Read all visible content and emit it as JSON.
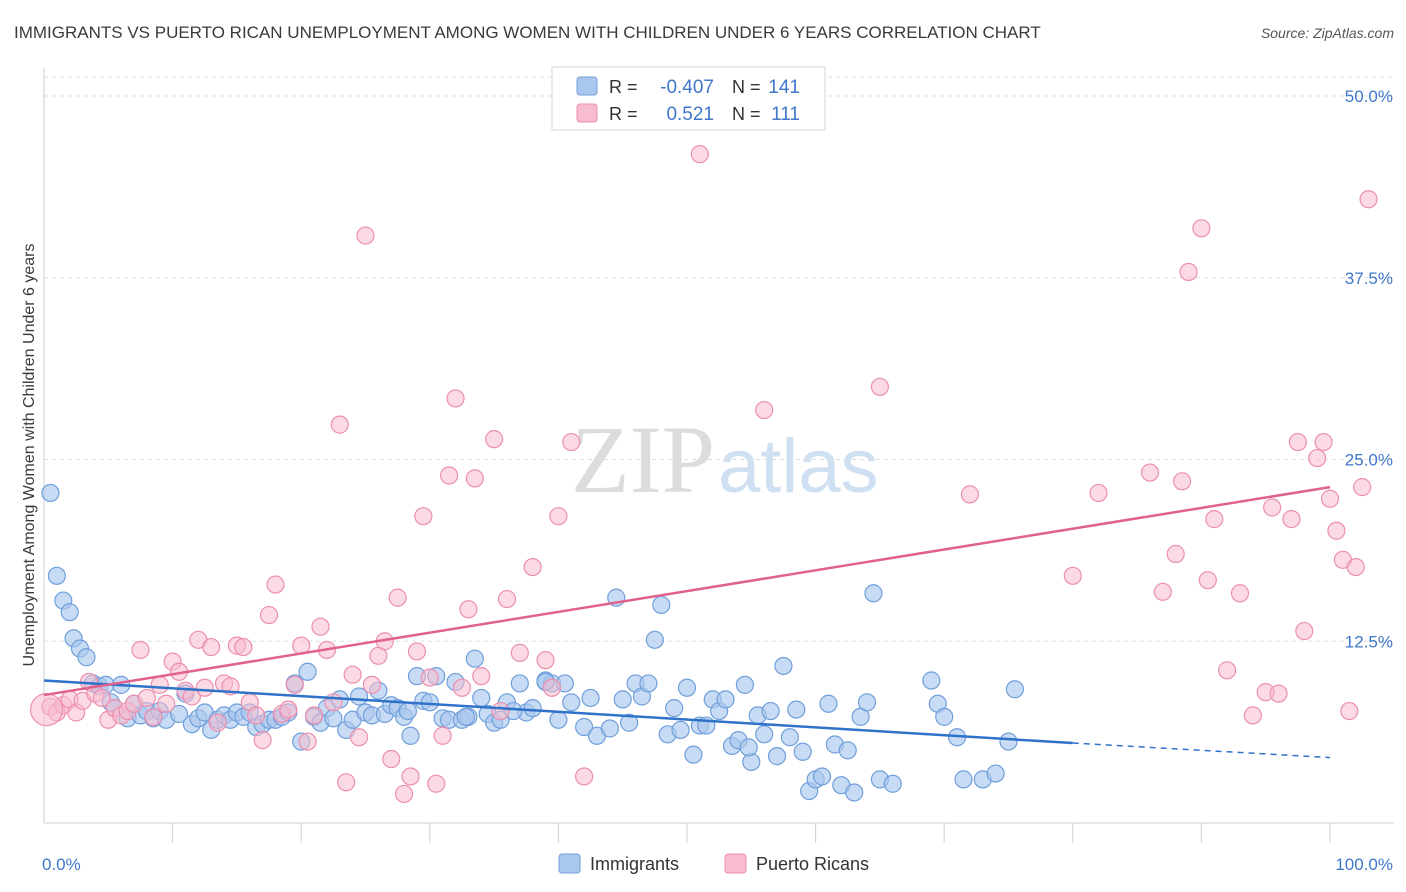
{
  "chart_data": {
    "type": "scatter",
    "title": "IMMIGRANTS VS PUERTO RICAN UNEMPLOYMENT AMONG WOMEN WITH CHILDREN UNDER 6 YEARS CORRELATION CHART",
    "source": "Source: ZipAtlas.com",
    "watermark": {
      "bold": "ZIP",
      "light": "atlas"
    },
    "ylabel": "Unemployment Among Women with Children Under 6 years",
    "xlabel": "",
    "xlim": [
      0,
      100
    ],
    "ylim": [
      0,
      50
    ],
    "x_tick_labels": [
      {
        "value": 0,
        "label": "0.0%"
      },
      {
        "value": 100,
        "label": "100.0%"
      }
    ],
    "y_tick_labels": [
      {
        "value": 12.5,
        "label": "12.5%"
      },
      {
        "value": 25,
        "label": "25.0%"
      },
      {
        "value": 37.5,
        "label": "37.5%"
      },
      {
        "value": 50,
        "label": "50.0%"
      }
    ],
    "grid": "dashed horizontal",
    "legend": {
      "placement": "top-center",
      "rows": [
        {
          "r_label": "R =",
          "r_value": "-0.407",
          "n_label": "N =",
          "n_value": "141"
        },
        {
          "r_label": "R =",
          "r_value": "0.521",
          "n_label": "N =",
          "n_value": "111"
        }
      ]
    },
    "bottom_legend": [
      "Immigrants",
      "Puerto Ricans"
    ],
    "colors": {
      "immigrants_fill": "#aac8ee",
      "immigrants_stroke": "#6f9fdb",
      "immigrants_line": "#2f72c9",
      "puerto_fill": "#f7bccd",
      "puerto_stroke": "#ec8fae",
      "puerto_line": "#e0628c",
      "axis_text": "#3f78c8",
      "grid": "#dedede"
    },
    "series": [
      {
        "name": "Immigrants",
        "trend": {
          "x0": 0,
          "y0": 9.8,
          "x1": 80,
          "y1": 5.5,
          "x_dash_end": 100,
          "y_dash_end": 4.5
        },
        "points": [
          [
            0.5,
            22.7
          ],
          [
            1,
            17
          ],
          [
            1.5,
            15.3
          ],
          [
            2,
            14.5
          ],
          [
            2.3,
            12.7
          ],
          [
            2.8,
            12
          ],
          [
            3.3,
            11.4
          ],
          [
            3.8,
            9.6
          ],
          [
            4.3,
            9.4
          ],
          [
            4.8,
            9.5
          ],
          [
            5.2,
            8.3
          ],
          [
            5.5,
            7.9
          ],
          [
            6,
            9.5
          ],
          [
            6.5,
            7.2
          ],
          [
            7,
            8.2
          ],
          [
            7.5,
            7.4
          ],
          [
            8,
            7.7
          ],
          [
            8.5,
            7.2
          ],
          [
            9,
            7.7
          ],
          [
            9.5,
            7.1
          ],
          [
            10.5,
            7.5
          ],
          [
            11,
            8.9
          ],
          [
            11.5,
            6.8
          ],
          [
            12,
            7.2
          ],
          [
            12.5,
            7.6
          ],
          [
            13,
            6.4
          ],
          [
            13.5,
            7.1
          ],
          [
            14,
            7.4
          ],
          [
            14.5,
            7.1
          ],
          [
            15,
            7.6
          ],
          [
            15.5,
            7.3
          ],
          [
            16,
            7.6
          ],
          [
            16.5,
            6.6
          ],
          [
            17,
            6.8
          ],
          [
            17.5,
            7.1
          ],
          [
            18,
            7.1
          ],
          [
            18.5,
            7.3
          ],
          [
            19,
            7.6
          ],
          [
            19.5,
            9.6
          ],
          [
            20,
            5.6
          ],
          [
            20.5,
            10.4
          ],
          [
            21,
            7.3
          ],
          [
            21.5,
            6.9
          ],
          [
            22,
            7.9
          ],
          [
            22.5,
            7.2
          ],
          [
            23,
            8.5
          ],
          [
            23.5,
            6.4
          ],
          [
            24,
            7.1
          ],
          [
            24.5,
            8.7
          ],
          [
            25,
            7.6
          ],
          [
            25.5,
            7.4
          ],
          [
            26,
            9.1
          ],
          [
            26.5,
            7.5
          ],
          [
            27,
            8.1
          ],
          [
            27.5,
            7.9
          ],
          [
            28,
            7.3
          ],
          [
            28.5,
            6.0
          ],
          [
            29,
            10.1
          ],
          [
            29.5,
            8.4
          ],
          [
            30,
            8.3
          ],
          [
            30.5,
            10.1
          ],
          [
            31,
            7.2
          ],
          [
            31.5,
            7.1
          ],
          [
            32,
            9.7
          ],
          [
            32.5,
            7.1
          ],
          [
            33,
            7.3
          ],
          [
            33.5,
            11.3
          ],
          [
            34,
            8.6
          ],
          [
            34.5,
            7.5
          ],
          [
            35,
            6.9
          ],
          [
            35.5,
            7.1
          ],
          [
            36,
            8.3
          ],
          [
            37,
            9.6
          ],
          [
            37.5,
            7.6
          ],
          [
            38,
            7.9
          ],
          [
            39,
            9.8
          ],
          [
            39.5,
            9.6
          ],
          [
            40,
            7.1
          ],
          [
            40.5,
            9.6
          ],
          [
            41,
            8.3
          ],
          [
            42,
            6.6
          ],
          [
            42.5,
            8.6
          ],
          [
            43,
            6.0
          ],
          [
            44,
            6.5
          ],
          [
            44.5,
            15.5
          ],
          [
            45,
            8.5
          ],
          [
            45.5,
            6.9
          ],
          [
            46,
            9.6
          ],
          [
            46.5,
            8.7
          ],
          [
            47,
            9.6
          ],
          [
            47.5,
            12.6
          ],
          [
            48,
            15.0
          ],
          [
            48.5,
            6.1
          ],
          [
            49,
            7.9
          ],
          [
            49.5,
            6.4
          ],
          [
            50,
            9.3
          ],
          [
            50.5,
            4.7
          ],
          [
            51,
            6.7
          ],
          [
            51.5,
            6.7
          ],
          [
            52,
            8.5
          ],
          [
            52.5,
            7.7
          ],
          [
            53,
            8.5
          ],
          [
            53.5,
            5.3
          ],
          [
            54,
            5.7
          ],
          [
            54.5,
            9.5
          ],
          [
            55,
            4.2
          ],
          [
            55.5,
            7.4
          ],
          [
            56,
            6.1
          ],
          [
            56.5,
            7.7
          ],
          [
            57,
            4.6
          ],
          [
            57.5,
            10.8
          ],
          [
            58,
            5.9
          ],
          [
            58.5,
            7.8
          ],
          [
            59,
            4.9
          ],
          [
            59.5,
            2.2
          ],
          [
            60,
            3.0
          ],
          [
            60.5,
            3.2
          ],
          [
            61,
            8.2
          ],
          [
            61.5,
            5.4
          ],
          [
            62,
            2.6
          ],
          [
            62.5,
            5.0
          ],
          [
            63,
            2.1
          ],
          [
            63.5,
            7.3
          ],
          [
            64,
            8.3
          ],
          [
            64.5,
            15.8
          ],
          [
            65,
            3.0
          ],
          [
            66,
            2.7
          ],
          [
            69,
            9.8
          ],
          [
            69.5,
            8.2
          ],
          [
            70,
            7.3
          ],
          [
            71,
            5.9
          ],
          [
            71.5,
            3.0
          ],
          [
            73,
            3.0
          ],
          [
            74,
            3.4
          ],
          [
            75,
            5.6
          ],
          [
            75.5,
            9.2
          ],
          [
            54.8,
            5.2
          ],
          [
            39,
            9.7
          ],
          [
            36.5,
            7.7
          ],
          [
            32.8,
            7.3
          ],
          [
            28.3,
            7.7
          ]
        ]
      },
      {
        "name": "Puerto Ricans",
        "trend": {
          "x0": 0,
          "y0": 8.8,
          "x1": 100,
          "y1": 23.1
        },
        "points": [
          [
            0.5,
            8.0
          ],
          [
            1,
            7.6
          ],
          [
            1.5,
            8.1
          ],
          [
            2,
            8.5
          ],
          [
            2.5,
            7.6
          ],
          [
            3,
            8.4
          ],
          [
            3.5,
            9.7
          ],
          [
            4,
            8.9
          ],
          [
            4.5,
            8.6
          ],
          [
            5,
            7.1
          ],
          [
            5.5,
            7.9
          ],
          [
            6,
            7.4
          ],
          [
            6.5,
            7.7
          ],
          [
            7,
            8.2
          ],
          [
            7.5,
            11.9
          ],
          [
            8,
            8.6
          ],
          [
            8.5,
            7.3
          ],
          [
            9,
            9.5
          ],
          [
            9.5,
            8.2
          ],
          [
            10,
            11.1
          ],
          [
            10.5,
            10.4
          ],
          [
            11,
            9.1
          ],
          [
            11.5,
            8.7
          ],
          [
            12,
            12.6
          ],
          [
            12.5,
            9.3
          ],
          [
            13,
            12.1
          ],
          [
            13.5,
            6.9
          ],
          [
            14,
            9.6
          ],
          [
            14.5,
            9.4
          ],
          [
            15,
            12.2
          ],
          [
            15.5,
            12.1
          ],
          [
            16,
            8.3
          ],
          [
            16.5,
            7.4
          ],
          [
            17,
            5.7
          ],
          [
            17.5,
            14.3
          ],
          [
            18,
            16.4
          ],
          [
            18.5,
            7.5
          ],
          [
            19,
            7.8
          ],
          [
            19.5,
            9.5
          ],
          [
            20,
            12.2
          ],
          [
            20.5,
            5.6
          ],
          [
            21,
            7.4
          ],
          [
            21.5,
            13.5
          ],
          [
            22,
            11.9
          ],
          [
            22.5,
            8.3
          ],
          [
            23,
            27.4
          ],
          [
            23.5,
            2.8
          ],
          [
            24,
            10.2
          ],
          [
            24.5,
            5.9
          ],
          [
            25,
            40.4
          ],
          [
            25.5,
            9.5
          ],
          [
            26,
            11.5
          ],
          [
            26.5,
            12.5
          ],
          [
            27,
            4.4
          ],
          [
            27.5,
            15.5
          ],
          [
            28,
            2.0
          ],
          [
            28.5,
            3.2
          ],
          [
            29,
            11.8
          ],
          [
            29.5,
            21.1
          ],
          [
            30,
            10.0
          ],
          [
            30.5,
            2.7
          ],
          [
            31,
            6.0
          ],
          [
            31.5,
            23.9
          ],
          [
            32,
            29.2
          ],
          [
            32.5,
            9.3
          ],
          [
            33,
            14.7
          ],
          [
            33.5,
            23.7
          ],
          [
            34,
            10.1
          ],
          [
            35,
            26.4
          ],
          [
            35.5,
            7.7
          ],
          [
            36,
            15.4
          ],
          [
            37,
            11.7
          ],
          [
            38,
            17.6
          ],
          [
            39,
            11.2
          ],
          [
            39.5,
            9.3
          ],
          [
            40,
            21.1
          ],
          [
            41,
            26.2
          ],
          [
            42,
            3.2
          ],
          [
            51,
            46.0
          ],
          [
            56,
            28.4
          ],
          [
            65,
            30.0
          ],
          [
            72,
            22.6
          ],
          [
            80,
            17.0
          ],
          [
            82,
            22.7
          ],
          [
            86,
            24.1
          ],
          [
            87,
            15.9
          ],
          [
            88,
            18.5
          ],
          [
            88.5,
            23.5
          ],
          [
            89,
            37.9
          ],
          [
            90,
            40.9
          ],
          [
            90.5,
            16.7
          ],
          [
            91,
            20.9
          ],
          [
            92,
            10.5
          ],
          [
            93,
            15.8
          ],
          [
            94,
            7.4
          ],
          [
            95,
            9.0
          ],
          [
            95.5,
            21.7
          ],
          [
            96,
            8.9
          ],
          [
            97,
            20.9
          ],
          [
            97.5,
            26.2
          ],
          [
            98,
            13.2
          ],
          [
            99,
            25.1
          ],
          [
            99.5,
            26.2
          ],
          [
            100,
            22.3
          ],
          [
            100.5,
            20.1
          ],
          [
            101,
            18.1
          ],
          [
            101.5,
            7.7
          ],
          [
            102,
            17.6
          ],
          [
            102.5,
            23.1
          ],
          [
            103,
            42.9
          ],
          [
            0.2,
            7.8
          ]
        ]
      }
    ]
  }
}
